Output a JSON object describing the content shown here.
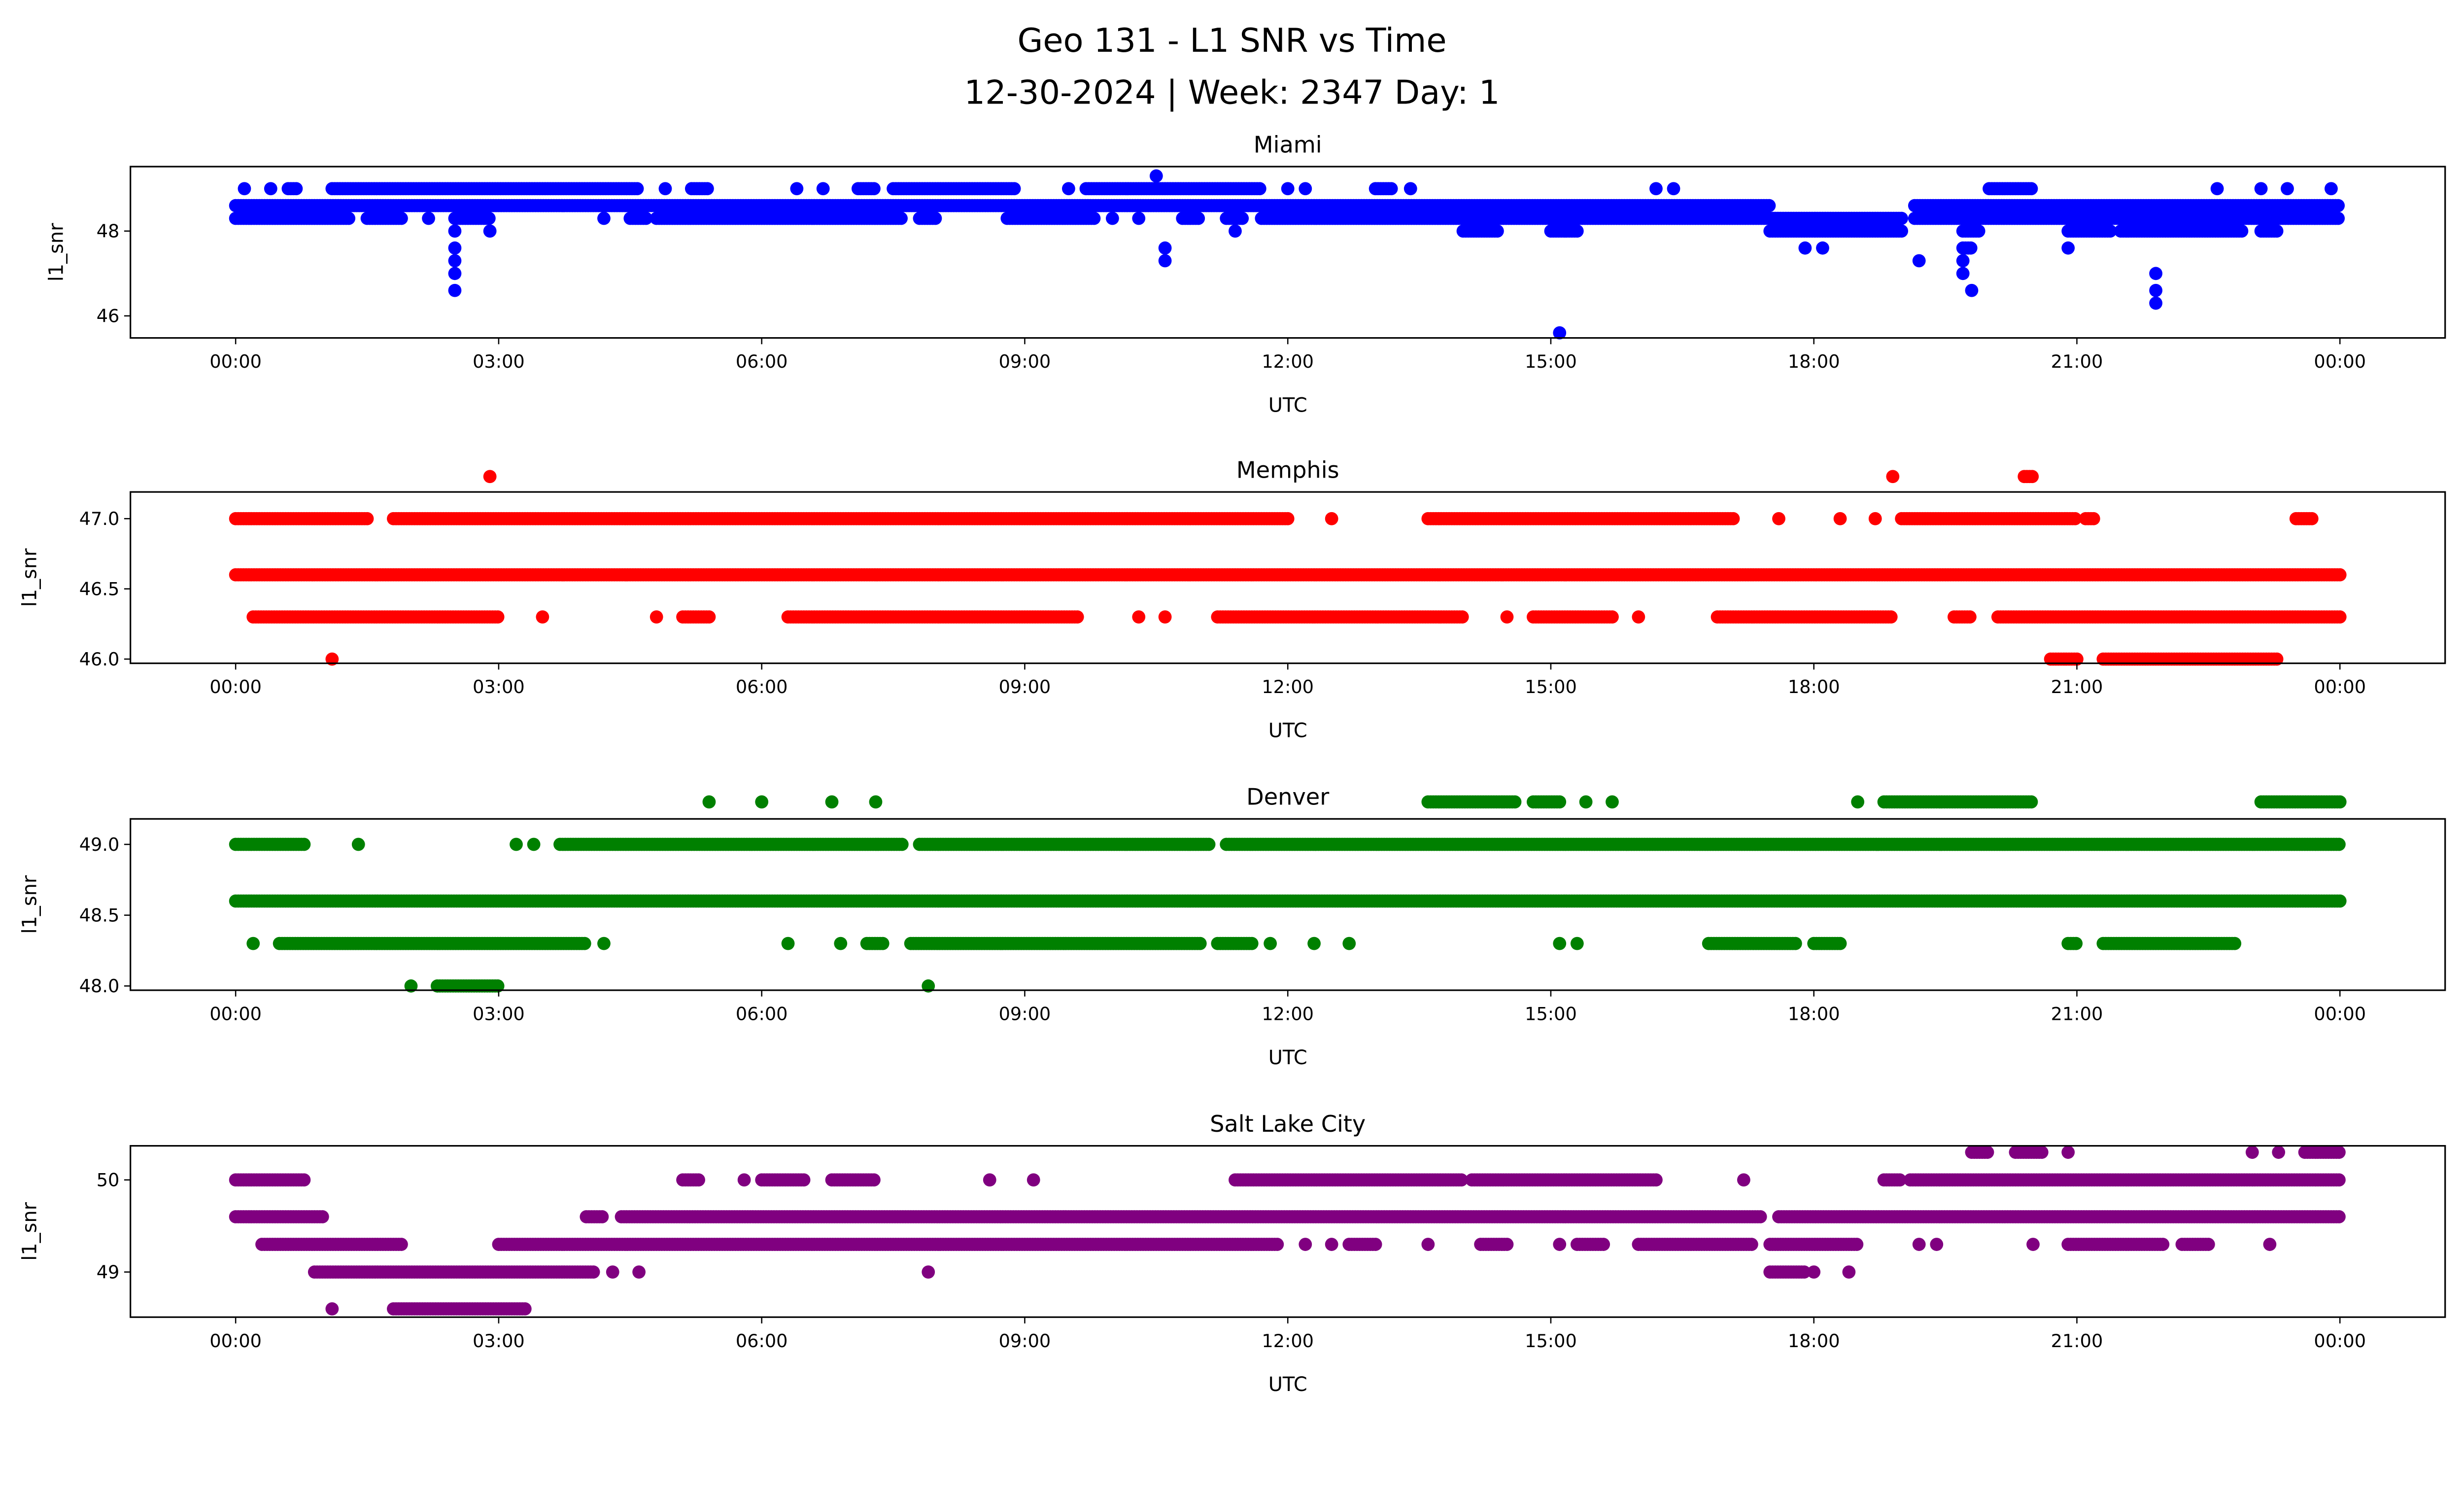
{
  "chart_data": {
    "type": "scatter",
    "title": [
      "Geo 131 - L1 SNR vs Time",
      "12-30-2024 | Week: 2347 Day: 1"
    ],
    "x_tick_labels": [
      "00:00",
      "03:00",
      "06:00",
      "09:00",
      "12:00",
      "15:00",
      "18:00",
      "21:00",
      "00:00"
    ],
    "x_range_hours": [
      -1.2,
      25.2
    ],
    "x_ticks_hours": [
      0,
      3,
      6,
      9,
      12,
      15,
      18,
      21,
      24
    ],
    "panels": [
      {
        "title": "Miami",
        "xlabel": "UTC",
        "ylabel": "l1_snr",
        "color": "#0000ff",
        "ylim": [
          45.48,
          49.52
        ],
        "yticks": [
          46,
          48
        ],
        "ytick_labels": [
          "46",
          "48"
        ],
        "levels": [
          {
            "y": 48.6,
            "runs": [
              [
                0,
                17.5
              ],
              [
                19.15,
                24
              ]
            ]
          },
          {
            "y": 48.3,
            "runs": [
              [
                0,
                1.3
              ],
              [
                1.5,
                1.9
              ],
              [
                2.2,
                2.2
              ],
              [
                2.5,
                2.9
              ],
              [
                4.2,
                4.2
              ],
              [
                4.5,
                4.7
              ],
              [
                4.8,
                7.6
              ],
              [
                7.8,
                8.0
              ],
              [
                8.8,
                9.8
              ],
              [
                10.0,
                10.0
              ],
              [
                10.3,
                10.3
              ],
              [
                10.8,
                11.0
              ],
              [
                11.3,
                11.5
              ],
              [
                11.7,
                17.5
              ],
              [
                17.5,
                19.0
              ],
              [
                19.15,
                24
              ]
            ]
          },
          {
            "y": 49.0,
            "runs": [
              [
                0.1,
                0.1
              ],
              [
                0.4,
                0.4
              ],
              [
                0.6,
                0.7
              ],
              [
                1.1,
                4.6
              ],
              [
                4.9,
                4.9
              ],
              [
                5.2,
                5.4
              ],
              [
                6.4,
                6.4
              ],
              [
                6.7,
                6.7
              ],
              [
                7.1,
                7.3
              ],
              [
                7.5,
                8.9
              ],
              [
                9.5,
                9.5
              ],
              [
                9.7,
                11.7
              ],
              [
                12.0,
                12.0
              ],
              [
                12.2,
                12.2
              ],
              [
                13.0,
                13.2
              ],
              [
                13.4,
                13.4
              ],
              [
                16.2,
                16.2
              ],
              [
                16.4,
                16.4
              ],
              [
                20.0,
                20.5
              ],
              [
                22.6,
                22.6
              ],
              [
                23.1,
                23.1
              ],
              [
                23.4,
                23.4
              ],
              [
                23.9,
                23.9
              ]
            ]
          },
          {
            "y": 48.0,
            "runs": [
              [
                2.5,
                2.5
              ],
              [
                2.9,
                2.9
              ],
              [
                11.4,
                11.4
              ],
              [
                14.0,
                14.4
              ],
              [
                15.0,
                15.3
              ],
              [
                17.5,
                19.0
              ],
              [
                19.7,
                19.9
              ],
              [
                20.9,
                21.4
              ],
              [
                21.5,
                22.9
              ],
              [
                23.1,
                23.3
              ]
            ]
          },
          {
            "y": 47.6,
            "runs": [
              [
                2.5,
                2.5
              ],
              [
                10.6,
                10.6
              ],
              [
                17.9,
                17.9
              ],
              [
                18.1,
                18.1
              ],
              [
                19.7,
                19.8
              ],
              [
                20.9,
                20.9
              ]
            ]
          },
          {
            "y": 47.3,
            "runs": [
              [
                2.5,
                2.5
              ],
              [
                10.6,
                10.6
              ],
              [
                19.2,
                19.2
              ],
              [
                19.7,
                19.7
              ]
            ]
          },
          {
            "y": 47.0,
            "runs": [
              [
                2.5,
                2.5
              ],
              [
                19.7,
                19.7
              ],
              [
                21.9,
                21.9
              ]
            ]
          },
          {
            "y": 46.6,
            "runs": [
              [
                2.5,
                2.5
              ],
              [
                19.8,
                19.8
              ],
              [
                21.9,
                21.9
              ]
            ]
          },
          {
            "y": 46.3,
            "runs": [
              [
                21.9,
                21.9
              ]
            ]
          },
          {
            "y": 45.6,
            "runs": [
              [
                15.1,
                15.1
              ]
            ]
          },
          {
            "y": 49.3,
            "runs": [
              [
                10.5,
                10.5
              ]
            ]
          }
        ]
      },
      {
        "title": "Memphis",
        "xlabel": "UTC",
        "ylabel": "l1_snr",
        "color": "#ff0000",
        "ylim": [
          45.97,
          47.19
        ],
        "yticks": [
          46.0,
          46.5,
          47.0
        ],
        "ytick_labels": [
          "46.0",
          "46.5",
          "47.0"
        ],
        "levels": [
          {
            "y": 46.6,
            "runs": [
              [
                0,
                24
              ]
            ]
          },
          {
            "y": 47.0,
            "runs": [
              [
                0,
                1.5
              ],
              [
                1.8,
                12.0
              ],
              [
                12.5,
                12.5
              ],
              [
                13.6,
                17.1
              ],
              [
                17.6,
                17.6
              ],
              [
                18.3,
                18.3
              ],
              [
                18.7,
                18.7
              ],
              [
                19.0,
                21.0
              ],
              [
                21.1,
                21.2
              ],
              [
                23.5,
                23.7
              ]
            ]
          },
          {
            "y": 46.3,
            "runs": [
              [
                0.2,
                3.0
              ],
              [
                3.5,
                3.5
              ],
              [
                4.8,
                4.8
              ],
              [
                5.1,
                5.4
              ],
              [
                6.3,
                9.6
              ],
              [
                10.3,
                10.3
              ],
              [
                10.6,
                10.6
              ],
              [
                11.2,
                14.0
              ],
              [
                14.5,
                14.5
              ],
              [
                14.8,
                15.7
              ],
              [
                16.0,
                16.0
              ],
              [
                16.9,
                18.9
              ],
              [
                19.6,
                19.8
              ],
              [
                20.1,
                24
              ]
            ]
          },
          {
            "y": 46.0,
            "runs": [
              [
                1.1,
                1.1
              ],
              [
                20.7,
                21.0
              ],
              [
                21.3,
                23.3
              ]
            ]
          },
          {
            "y": 47.3,
            "runs": [
              [
                2.9,
                2.9
              ],
              [
                18.9,
                18.9
              ],
              [
                20.4,
                20.5
              ]
            ]
          }
        ]
      },
      {
        "title": "Denver",
        "xlabel": "UTC",
        "ylabel": "l1_snr",
        "color": "#008000",
        "ylim": [
          47.97,
          49.18
        ],
        "yticks": [
          48.0,
          48.5,
          49.0
        ],
        "ytick_labels": [
          "48.0",
          "48.5",
          "49.0"
        ],
        "levels": [
          {
            "y": 48.6,
            "runs": [
              [
                0,
                24
              ]
            ]
          },
          {
            "y": 49.0,
            "runs": [
              [
                0,
                0.8
              ],
              [
                1.4,
                1.4
              ],
              [
                3.2,
                3.2
              ],
              [
                3.4,
                3.4
              ],
              [
                3.7,
                7.6
              ],
              [
                7.8,
                11.1
              ],
              [
                11.3,
                24
              ]
            ]
          },
          {
            "y": 48.3,
            "runs": [
              [
                0.2,
                0.2
              ],
              [
                0.5,
                4.0
              ],
              [
                4.2,
                4.2
              ],
              [
                6.3,
                6.3
              ],
              [
                6.9,
                6.9
              ],
              [
                7.2,
                7.4
              ],
              [
                7.7,
                11.0
              ],
              [
                11.2,
                11.6
              ],
              [
                11.8,
                11.8
              ],
              [
                12.3,
                12.3
              ],
              [
                12.7,
                12.7
              ],
              [
                15.1,
                15.1
              ],
              [
                15.3,
                15.3
              ],
              [
                16.8,
                17.8
              ],
              [
                18.0,
                18.3
              ],
              [
                20.9,
                21.0
              ],
              [
                21.3,
                22.8
              ]
            ]
          },
          {
            "y": 48.0,
            "runs": [
              [
                2.0,
                2.0
              ],
              [
                2.3,
                3.0
              ],
              [
                7.9,
                7.9
              ]
            ]
          },
          {
            "y": 49.3,
            "runs": [
              [
                5.4,
                5.4
              ],
              [
                6.0,
                6.0
              ],
              [
                6.8,
                6.8
              ],
              [
                7.3,
                7.3
              ],
              [
                13.6,
                14.6
              ],
              [
                14.8,
                15.1
              ],
              [
                15.4,
                15.4
              ],
              [
                15.7,
                15.7
              ],
              [
                18.5,
                18.5
              ],
              [
                18.8,
                20.5
              ],
              [
                23.1,
                24
              ]
            ]
          }
        ]
      },
      {
        "title": "Salt Lake City",
        "xlabel": "UTC",
        "ylabel": "l1_snr",
        "color": "#800080",
        "ylim": [
          48.51,
          50.37
        ],
        "yticks": [
          49,
          50
        ],
        "ytick_labels": [
          "49",
          "50"
        ],
        "levels": [
          {
            "y": 49.6,
            "runs": [
              [
                0,
                1.0
              ],
              [
                4.0,
                4.2
              ],
              [
                4.4,
                17.4
              ],
              [
                17.6,
                24
              ]
            ]
          },
          {
            "y": 50.0,
            "runs": [
              [
                0,
                0.8
              ],
              [
                5.1,
                5.3
              ],
              [
                5.8,
                5.8
              ],
              [
                6.0,
                6.5
              ],
              [
                6.8,
                7.3
              ],
              [
                8.6,
                8.6
              ],
              [
                9.1,
                9.1
              ],
              [
                11.4,
                14.0
              ],
              [
                14.1,
                16.2
              ],
              [
                17.2,
                17.2
              ],
              [
                18.8,
                19.0
              ],
              [
                19.1,
                24
              ]
            ]
          },
          {
            "y": 49.3,
            "runs": [
              [
                0.3,
                1.9
              ],
              [
                3.0,
                11.9
              ],
              [
                12.2,
                12.2
              ],
              [
                12.5,
                12.5
              ],
              [
                12.7,
                13.0
              ],
              [
                13.6,
                13.6
              ],
              [
                14.2,
                14.5
              ],
              [
                15.1,
                15.1
              ],
              [
                15.3,
                15.6
              ],
              [
                16.0,
                17.3
              ],
              [
                17.5,
                18.5
              ],
              [
                19.2,
                19.2
              ],
              [
                19.4,
                19.4
              ],
              [
                20.5,
                20.5
              ],
              [
                20.9,
                22.0
              ],
              [
                22.2,
                22.5
              ],
              [
                23.2,
                23.2
              ]
            ]
          },
          {
            "y": 49.0,
            "runs": [
              [
                0.9,
                4.1
              ],
              [
                4.3,
                4.3
              ],
              [
                4.6,
                4.6
              ],
              [
                7.9,
                7.9
              ],
              [
                17.5,
                17.9
              ],
              [
                18.0,
                18.0
              ],
              [
                18.4,
                18.4
              ]
            ]
          },
          {
            "y": 48.6,
            "runs": [
              [
                1.1,
                1.1
              ],
              [
                1.8,
                3.3
              ]
            ]
          },
          {
            "y": 50.3,
            "runs": [
              [
                19.8,
                20.0
              ],
              [
                20.3,
                20.6
              ],
              [
                20.9,
                20.9
              ],
              [
                23.0,
                23.0
              ],
              [
                23.3,
                23.3
              ],
              [
                23.6,
                24
              ]
            ]
          }
        ]
      }
    ]
  }
}
